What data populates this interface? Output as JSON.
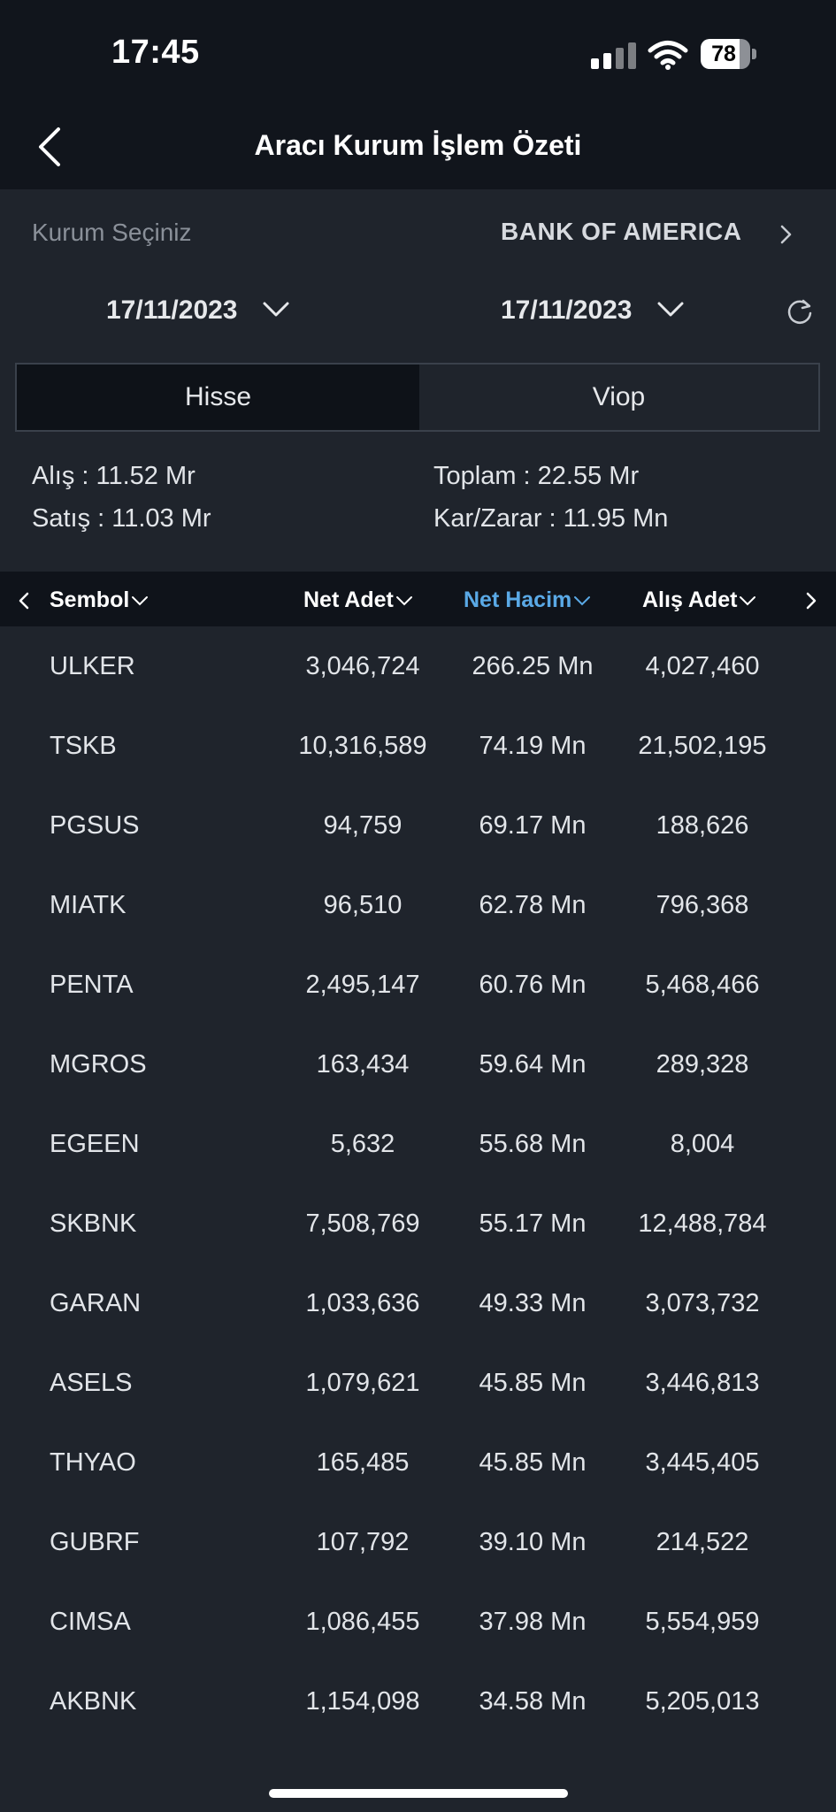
{
  "status": {
    "time": "17:45",
    "battery": "78",
    "battery_level": 0.78
  },
  "header": {
    "title": "Aracı Kurum İşlem Özeti"
  },
  "broker": {
    "label": "Kurum Seçiniz",
    "value": "BANK OF AMERICA"
  },
  "dates": {
    "start": "17/11/2023",
    "end": "17/11/2023"
  },
  "tabs": [
    {
      "label": "Hisse",
      "active": true
    },
    {
      "label": "Viop",
      "active": false
    }
  ],
  "stats": {
    "alis": "Alış :  11.52 Mr",
    "satis": "Satış :  11.03 Mr",
    "toplam": "Toplam :  22.55 Mr",
    "kar_zarar": "Kar/Zarar :  11.95 Mn"
  },
  "table": {
    "columns": [
      "Sembol",
      "Net Adet",
      "Net Hacim",
      "Alış Adet"
    ],
    "rows": [
      [
        "ULKER",
        "3,046,724",
        "266.25 Mn",
        "4,027,460"
      ],
      [
        "TSKB",
        "10,316,589",
        "74.19 Mn",
        "21,502,195"
      ],
      [
        "PGSUS",
        "94,759",
        "69.17 Mn",
        "188,626"
      ],
      [
        "MIATK",
        "96,510",
        "62.78 Mn",
        "796,368"
      ],
      [
        "PENTA",
        "2,495,147",
        "60.76 Mn",
        "5,468,466"
      ],
      [
        "MGROS",
        "163,434",
        "59.64 Mn",
        "289,328"
      ],
      [
        "EGEEN",
        "5,632",
        "55.68 Mn",
        "8,004"
      ],
      [
        "SKBNK",
        "7,508,769",
        "55.17 Mn",
        "12,488,784"
      ],
      [
        "GARAN",
        "1,033,636",
        "49.33 Mn",
        "3,073,732"
      ],
      [
        "ASELS",
        "1,079,621",
        "45.85 Mn",
        "3,446,813"
      ],
      [
        "THYAO",
        "165,485",
        "45.85 Mn",
        "3,445,405"
      ],
      [
        "GUBRF",
        "107,792",
        "39.10 Mn",
        "214,522"
      ],
      [
        "CIMSA",
        "1,086,455",
        "37.98 Mn",
        "5,554,959"
      ],
      [
        "AKBNK",
        "1,154,098",
        "34.58 Mn",
        "5,205,013"
      ]
    ]
  },
  "colors": {
    "accent": "#5aa9e6",
    "background": "#1f242c",
    "header": "#11151c"
  }
}
